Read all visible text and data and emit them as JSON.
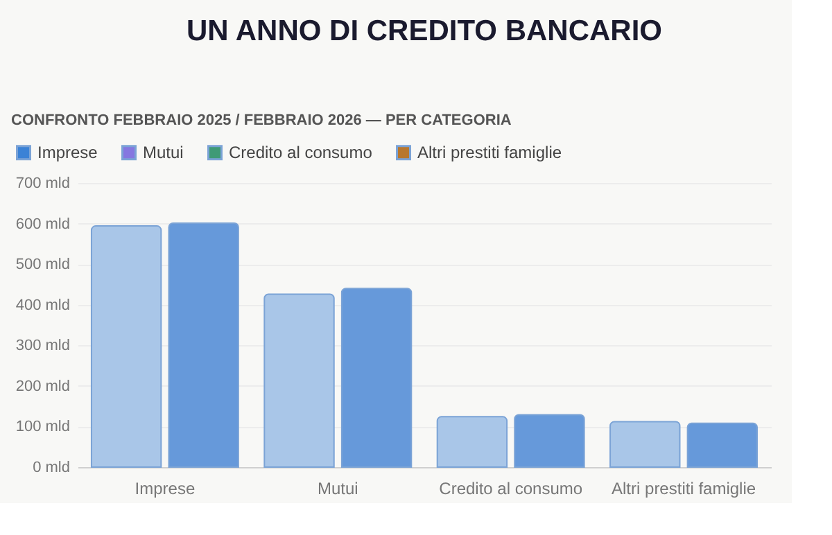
{
  "chart_data": {
    "type": "bar",
    "title": "UN ANNO DI CREDITO BANCARIO",
    "subtitle": "CONFRONTO FEBBRAIO 2025 / FEBBRAIO 2026 — PER CATEGORIA",
    "categories": [
      "Imprese",
      "Mutui",
      "Credito al consumo",
      "Altri prestiti famiglie"
    ],
    "series": [
      {
        "color": "#a9c6e8",
        "values": [
          594,
          426,
          124,
          112
        ]
      },
      {
        "color": "#6699da",
        "values": [
          601,
          440,
          129,
          108
        ]
      },
      {
        "name": "Imprese",
        "color": "#3b82d6",
        "values": [
          null,
          null,
          null,
          null
        ]
      },
      {
        "name": "Mutui",
        "color": "#8577e0",
        "values": [
          null,
          null,
          null,
          null
        ]
      },
      {
        "name": "Credito al consumo",
        "color": "#3f9a76",
        "values": [
          null,
          null,
          null,
          null
        ]
      },
      {
        "name": "Altri prestiti famiglie",
        "color": "#b8772e",
        "values": [
          null,
          null,
          null,
          null
        ]
      }
    ],
    "ylim": [
      0,
      700
    ],
    "yticks": [
      {
        "value": 0,
        "label": "0 mld"
      },
      {
        "value": 100,
        "label": "100 mld"
      },
      {
        "value": 200,
        "label": "200 mld"
      },
      {
        "value": 300,
        "label": "300 mld"
      },
      {
        "value": 400,
        "label": "400 mld"
      },
      {
        "value": 500,
        "label": "500 mld"
      },
      {
        "value": 600,
        "label": "600 mld"
      },
      {
        "value": 700,
        "label": "700 mld"
      }
    ],
    "grid": "y",
    "legend": "top left"
  }
}
